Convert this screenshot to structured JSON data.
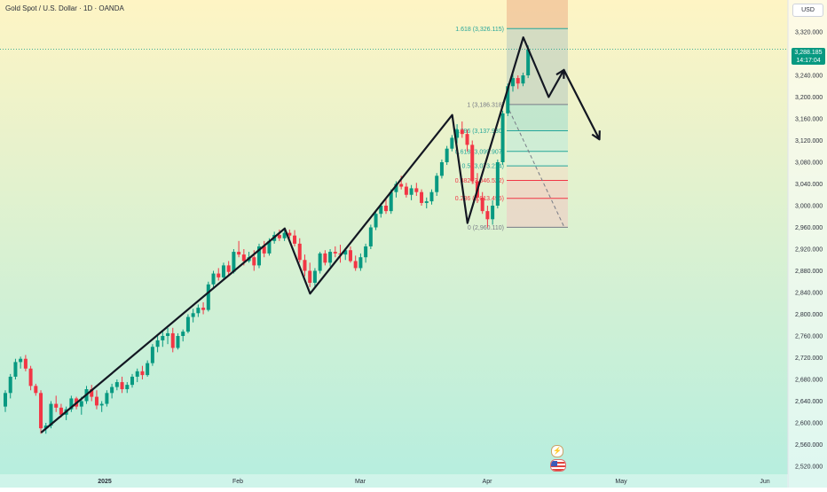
{
  "header": {
    "title": "Gold Spot / U.S. Dollar · 1D · OANDA",
    "currency": "USD"
  },
  "price_badge": {
    "price": "3,288.185",
    "countdown": "14:17:04"
  },
  "colors": {
    "up": "#089981",
    "down": "#f23645",
    "bg_top": "#fef4c4",
    "bg_bottom": "#b5eedf",
    "fib_lines": "#26a69a",
    "fib_red": "#f23645",
    "fib_zone": "#e9a07a",
    "zigzag": "#131722"
  },
  "icons": [
    "lightning-icon",
    "us-flag-icon"
  ],
  "chart_data": {
    "type": "candlestick",
    "title": "Gold Spot / U.S. Dollar · 1D · OANDA",
    "ylim": [
      2500,
      3390
    ],
    "y_ticks": [
      "3,320.000",
      "3,280.000",
      "3,240.000",
      "3,200.000",
      "3,160.000",
      "3,120.000",
      "3,080.000",
      "3,040.000",
      "3,000.000",
      "2,960.000",
      "2,920.000",
      "2,880.000",
      "2,840.000",
      "2,800.000",
      "2,760.000",
      "2,720.000",
      "2,680.000",
      "2,640.000",
      "2,600.000",
      "2,560.000",
      "2,520.000"
    ],
    "x_ticks": [
      "2025",
      "Feb",
      "Mar",
      "Apr",
      "May",
      "Jun"
    ],
    "last_price": 3288.185,
    "candles": [
      [
        2630,
        2660,
        2620,
        2655
      ],
      [
        2655,
        2690,
        2645,
        2685
      ],
      [
        2685,
        2718,
        2680,
        2712
      ],
      [
        2712,
        2722,
        2700,
        2718
      ],
      [
        2718,
        2725,
        2695,
        2700
      ],
      [
        2700,
        2705,
        2660,
        2668
      ],
      [
        2668,
        2672,
        2650,
        2655
      ],
      [
        2655,
        2660,
        2580,
        2590
      ],
      [
        2590,
        2600,
        2580,
        2595
      ],
      [
        2595,
        2640,
        2590,
        2635
      ],
      [
        2635,
        2650,
        2620,
        2628
      ],
      [
        2628,
        2635,
        2610,
        2615
      ],
      [
        2615,
        2630,
        2605,
        2625
      ],
      [
        2625,
        2650,
        2620,
        2645
      ],
      [
        2645,
        2648,
        2625,
        2630
      ],
      [
        2630,
        2648,
        2615,
        2640
      ],
      [
        2640,
        2668,
        2635,
        2662
      ],
      [
        2662,
        2670,
        2640,
        2648
      ],
      [
        2648,
        2660,
        2625,
        2632
      ],
      [
        2632,
        2640,
        2620,
        2635
      ],
      [
        2635,
        2660,
        2630,
        2655
      ],
      [
        2655,
        2672,
        2645,
        2666
      ],
      [
        2666,
        2680,
        2660,
        2675
      ],
      [
        2675,
        2685,
        2655,
        2662
      ],
      [
        2662,
        2675,
        2655,
        2670
      ],
      [
        2670,
        2690,
        2665,
        2685
      ],
      [
        2685,
        2700,
        2675,
        2695
      ],
      [
        2695,
        2705,
        2680,
        2688
      ],
      [
        2688,
        2715,
        2685,
        2710
      ],
      [
        2710,
        2745,
        2705,
        2740
      ],
      [
        2740,
        2760,
        2730,
        2752
      ],
      [
        2752,
        2768,
        2740,
        2760
      ],
      [
        2760,
        2775,
        2745,
        2765
      ],
      [
        2765,
        2775,
        2730,
        2738
      ],
      [
        2738,
        2765,
        2735,
        2760
      ],
      [
        2760,
        2772,
        2750,
        2768
      ],
      [
        2768,
        2800,
        2765,
        2795
      ],
      [
        2795,
        2810,
        2785,
        2802
      ],
      [
        2802,
        2818,
        2795,
        2812
      ],
      [
        2812,
        2822,
        2800,
        2808
      ],
      [
        2808,
        2860,
        2805,
        2855
      ],
      [
        2855,
        2880,
        2850,
        2875
      ],
      [
        2875,
        2885,
        2862,
        2868
      ],
      [
        2868,
        2895,
        2865,
        2890
      ],
      [
        2890,
        2898,
        2870,
        2878
      ],
      [
        2878,
        2920,
        2875,
        2915
      ],
      [
        2915,
        2935,
        2905,
        2910
      ],
      [
        2910,
        2920,
        2890,
        2898
      ],
      [
        2898,
        2915,
        2895,
        2905
      ],
      [
        2905,
        2918,
        2880,
        2890
      ],
      [
        2890,
        2930,
        2885,
        2925
      ],
      [
        2925,
        2935,
        2905,
        2912
      ],
      [
        2912,
        2940,
        2908,
        2935
      ],
      [
        2935,
        2952,
        2930,
        2946
      ],
      [
        2946,
        2956,
        2935,
        2940
      ],
      [
        2940,
        2955,
        2935,
        2950
      ],
      [
        2950,
        2956,
        2940,
        2945
      ],
      [
        2945,
        2955,
        2925,
        2930
      ],
      [
        2930,
        2940,
        2895,
        2900
      ],
      [
        2900,
        2910,
        2870,
        2880
      ],
      [
        2880,
        2895,
        2850,
        2858
      ],
      [
        2858,
        2885,
        2850,
        2880
      ],
      [
        2880,
        2915,
        2875,
        2912
      ],
      [
        2912,
        2918,
        2890,
        2895
      ],
      [
        2895,
        2920,
        2888,
        2915
      ],
      [
        2915,
        2925,
        2905,
        2912
      ],
      [
        2912,
        2928,
        2895,
        2910
      ],
      [
        2910,
        2922,
        2900,
        2918
      ],
      [
        2918,
        2925,
        2895,
        2898
      ],
      [
        2898,
        2908,
        2880,
        2885
      ],
      [
        2885,
        2912,
        2880,
        2905
      ],
      [
        2905,
        2930,
        2895,
        2925
      ],
      [
        2925,
        2965,
        2920,
        2960
      ],
      [
        2960,
        2990,
        2955,
        2985
      ],
      [
        2985,
        3005,
        2978,
        3000
      ],
      [
        3000,
        3015,
        2985,
        2990
      ],
      [
        2990,
        3030,
        2985,
        3025
      ],
      [
        3025,
        3045,
        3015,
        3040
      ],
      [
        3040,
        3055,
        3030,
        3035
      ],
      [
        3035,
        3042,
        3015,
        3020
      ],
      [
        3020,
        3038,
        3010,
        3032
      ],
      [
        3032,
        3042,
        3018,
        3025
      ],
      [
        3025,
        3030,
        3000,
        3005
      ],
      [
        3005,
        3015,
        2995,
        3008
      ],
      [
        3008,
        3030,
        3002,
        3025
      ],
      [
        3025,
        3060,
        3018,
        3055
      ],
      [
        3055,
        3085,
        3050,
        3080
      ],
      [
        3080,
        3110,
        3075,
        3105
      ],
      [
        3105,
        3130,
        3100,
        3125
      ],
      [
        3125,
        3150,
        3115,
        3140
      ],
      [
        3140,
        3155,
        3125,
        3132
      ],
      [
        3132,
        3140,
        3100,
        3112
      ],
      [
        3112,
        3120,
        3040,
        3045
      ],
      [
        3045,
        3060,
        3005,
        3015
      ],
      [
        3015,
        3025,
        2985,
        2990
      ],
      [
        2990,
        3000,
        2960,
        2975
      ],
      [
        2975,
        3010,
        2965,
        3000
      ],
      [
        3000,
        3085,
        2995,
        3080
      ],
      [
        3080,
        3175,
        3075,
        3170
      ],
      [
        3170,
        3225,
        3165,
        3220
      ],
      [
        3220,
        3245,
        3210,
        3235
      ],
      [
        3235,
        3240,
        3215,
        3225
      ],
      [
        3225,
        3245,
        3220,
        3240
      ],
      [
        3240,
        3295,
        3235,
        3288
      ]
    ],
    "fibonacci": [
      {
        "level": "1.618",
        "price": "3,326.115",
        "value": 3326.115
      },
      {
        "level": "1",
        "price": "3,186.318",
        "value": 3186.318
      },
      {
        "level": "0.786",
        "price": "3,137.930",
        "value": 3137.93
      },
      {
        "level": "0.618",
        "price": "3,099.907",
        "value": 3099.907
      },
      {
        "level": "0.5",
        "price": "3,073.214",
        "value": 3073.214
      },
      {
        "level": "0.382",
        "price": "3,046.522",
        "value": 3046.522
      },
      {
        "level": "0.236",
        "price": "3,013.495",
        "value": 3013.495
      },
      {
        "level": "0",
        "price": "2,960.110",
        "value": 2960.11
      }
    ],
    "zigzag_projection": [
      [
        6,
        2582
      ],
      [
        54,
        2958
      ],
      [
        59,
        2838
      ],
      [
        87,
        3167
      ],
      [
        90,
        2968
      ],
      [
        101,
        3310
      ],
      [
        106,
        3200
      ],
      [
        109,
        3250
      ],
      [
        116,
        3122
      ]
    ],
    "grid": false,
    "legend": "none"
  }
}
